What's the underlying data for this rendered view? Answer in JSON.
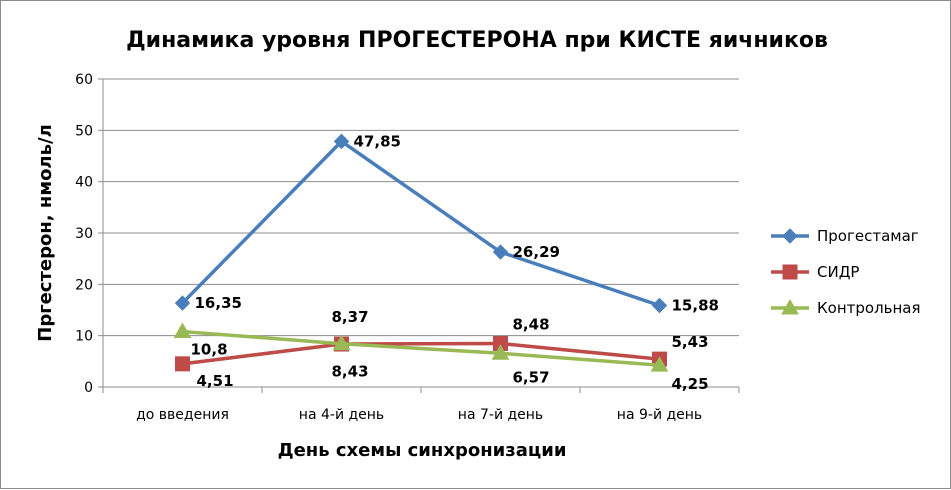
{
  "chart_data": {
    "type": "line",
    "title": "Динамика уровня ПРОГЕСТЕРОНА при КИСТЕ яичников",
    "xlabel": "День схемы синхронизации",
    "ylabel": "Пргестерон, нмоль/л",
    "categories": [
      "до введения",
      "на 4-й день",
      "на 7-й день",
      "на 9-й день"
    ],
    "ylim": [
      0,
      60
    ],
    "yticks": [
      "0",
      "10",
      "20",
      "30",
      "40",
      "50",
      "60"
    ],
    "grid": true,
    "legend_position": "right",
    "series": [
      {
        "name": "Прогестамаг",
        "values": [
          16.35,
          47.85,
          26.29,
          15.88
        ],
        "labels": [
          "16,35",
          "47,85",
          "26,29",
          "15,88"
        ],
        "color": "#4a7ebb",
        "marker": "diamond"
      },
      {
        "name": "СИДР",
        "values": [
          4.51,
          8.37,
          8.48,
          5.43
        ],
        "labels": [
          "4,51",
          "8,37",
          "8,48",
          "5,43"
        ],
        "color": "#be4b48",
        "marker": "square"
      },
      {
        "name": "Контрольная",
        "values": [
          10.8,
          8.43,
          6.57,
          4.25
        ],
        "labels": [
          "10,8",
          "8,43",
          "6,57",
          "4,25"
        ],
        "color": "#98b954",
        "marker": "triangle"
      }
    ]
  }
}
